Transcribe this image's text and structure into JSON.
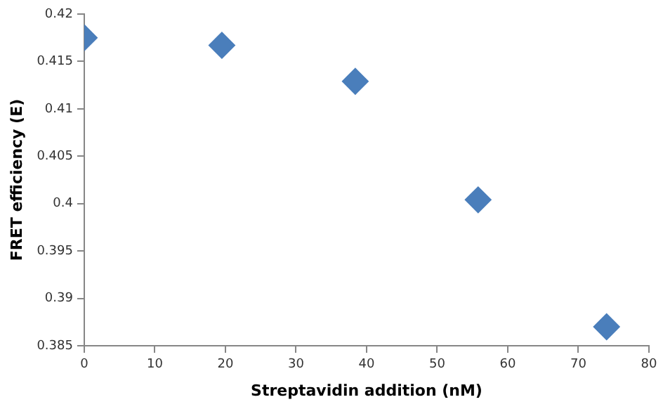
{
  "chart_data": {
    "type": "scatter",
    "xlabel": "Streptavidin addition (nM)",
    "ylabel": "FRET efficiency (E)",
    "x": [
      0,
      19.5,
      38.4,
      55.8,
      74.0
    ],
    "series": [
      {
        "color": "#4a7ebb",
        "values": [
          0.4175,
          0.4167,
          0.4129,
          0.4004,
          0.387
        ]
      }
    ],
    "xlim": [
      0,
      80
    ],
    "xticks": [
      0,
      10,
      20,
      30,
      40,
      50,
      60,
      70,
      80
    ],
    "ylim": [
      0.385,
      0.42
    ],
    "yticks": [
      0.385,
      0.39,
      0.395,
      0.4,
      0.405,
      0.41,
      0.415,
      0.42
    ],
    "grid": false,
    "legend": false,
    "marker": "diamond"
  }
}
